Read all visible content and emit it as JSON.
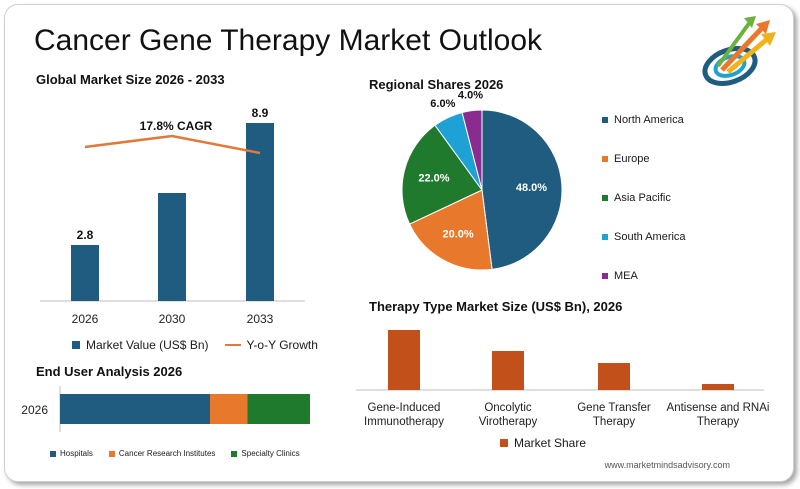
{
  "title": "Cancer Gene Therapy Market Outlook",
  "website": "www.marketmindsadvisory.com",
  "colors": {
    "navy": "#1f5c80",
    "orange": "#e8782b",
    "green": "#1f7a2e",
    "cyan": "#1ea2d6",
    "purple": "#8a2b8f",
    "rust": "#c2501b",
    "line": "#e0793a"
  },
  "logo_icon": "rising-arrows-logo-icon",
  "chart_data": [
    {
      "type": "bar",
      "title": "Global Market Size 2026 - 2033",
      "categories": [
        "2026",
        "2030",
        "2033"
      ],
      "series": [
        {
          "name": "Market Value (US$ Bn)",
          "values": [
            2.8,
            5.4,
            8.9
          ],
          "labels": [
            "2.8",
            "",
            "8.9"
          ]
        }
      ],
      "line_series": {
        "name": "Y-o-Y Growth"
      },
      "annotation": "17.8% CAGR",
      "ylim": [
        0,
        10
      ],
      "grid": false,
      "legend": "bottom"
    },
    {
      "type": "pie",
      "title": "Regional Shares 2026",
      "slices": [
        {
          "label": "North America",
          "value": 48.0,
          "text": "48.0%"
        },
        {
          "label": "Europe",
          "value": 20.0,
          "text": "20.0%"
        },
        {
          "label": "Asia Pacific",
          "value": 22.0,
          "text": "22.0%"
        },
        {
          "label": "South America",
          "value": 6.0,
          "text": "6.0%"
        },
        {
          "label": "MEA",
          "value": 4.0,
          "text": "4.0%"
        }
      ],
      "legend": "right"
    },
    {
      "type": "bar",
      "title": "Therapy Type Market Size (US$ Bn), 2026",
      "categories": [
        [
          "Gene-Induced",
          "Immunotherapy"
        ],
        [
          "Oncolytic",
          "Virotherapy"
        ],
        [
          "Gene Transfer",
          "Therapy"
        ],
        [
          "Antisense and RNAi",
          "Therapy"
        ]
      ],
      "series": [
        {
          "name": "Market Share",
          "values": [
            1.0,
            0.65,
            0.45,
            0.1
          ]
        }
      ],
      "legend": "bottom"
    },
    {
      "type": "bar",
      "orientation": "horizontal-stacked",
      "title": "End User Analysis 2026",
      "categories": [
        "2026"
      ],
      "series": [
        {
          "name": "Hospitals",
          "values": [
            60
          ]
        },
        {
          "name": "Cancer Research Institutes",
          "values": [
            15
          ]
        },
        {
          "name": "Specialty Clinics",
          "values": [
            25
          ]
        }
      ],
      "legend": "bottom"
    }
  ]
}
